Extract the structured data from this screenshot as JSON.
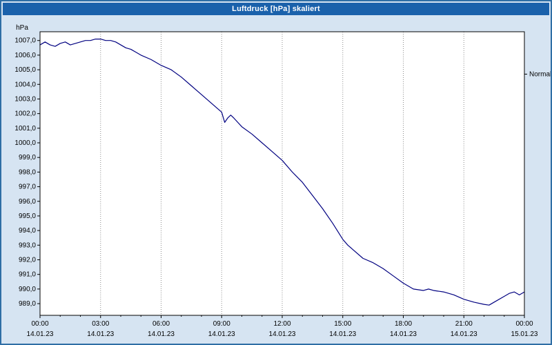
{
  "window": {
    "title": "Luftdruck [hPa] skaliert"
  },
  "chart_data": {
    "type": "line",
    "title": "Luftdruck [hPa] skaliert",
    "ylabel": "hPa",
    "ylim": [
      988.2,
      1007.6
    ],
    "xlim": [
      0,
      24
    ],
    "yticks": [
      1007,
      1006,
      1005,
      1004,
      1003,
      1002,
      1001,
      1000,
      999,
      998,
      997,
      996,
      995,
      994,
      993,
      992,
      991,
      990,
      989
    ],
    "ytick_labels": [
      "1007,0",
      "1006,0",
      "1005,0",
      "1004,0",
      "1003,0",
      "1002,0",
      "1001,0",
      "1000,0",
      "999,0",
      "998,0",
      "997,0",
      "996,0",
      "995,0",
      "994,0",
      "993,0",
      "992,0",
      "991,0",
      "990,0",
      "989,0"
    ],
    "xticks": [
      0,
      3,
      6,
      9,
      12,
      15,
      18,
      21,
      24
    ],
    "xtick_labels": [
      "00:00",
      "03:00",
      "06:00",
      "09:00",
      "12:00",
      "15:00",
      "18:00",
      "21:00",
      "00:00"
    ],
    "xtick_dates": [
      "14.01.23",
      "14.01.23",
      "14.01.23",
      "14.01.23",
      "14.01.23",
      "14.01.23",
      "14.01.23",
      "14.01.23",
      "15.01.23"
    ],
    "minor_xtick_step_hours": 1,
    "grid": {
      "vertical": true,
      "horizontal": false,
      "style": "dotted"
    },
    "annotation": {
      "label": "Normal",
      "value": 1004.7
    },
    "legend": "none",
    "series": [
      {
        "name": "Luftdruck [hPa] skaliert",
        "color": "#000080",
        "x": [
          0,
          0.25,
          0.5,
          0.75,
          1,
          1.25,
          1.5,
          1.75,
          2,
          2.25,
          2.5,
          2.75,
          3,
          3.25,
          3.5,
          3.75,
          4,
          4.25,
          4.5,
          4.75,
          5,
          5.5,
          6,
          6.5,
          7,
          7.5,
          8,
          8.25,
          8.5,
          8.75,
          9,
          9.15,
          9.3,
          9.45,
          9.6,
          9.8,
          10,
          10.5,
          11,
          11.5,
          12,
          12.5,
          13,
          13.5,
          14,
          14.5,
          15,
          15.25,
          15.5,
          16,
          16.5,
          17,
          17.5,
          18,
          18.5,
          19,
          19.25,
          19.5,
          20,
          20.5,
          21,
          21.5,
          22,
          22.25,
          22.5,
          23,
          23.25,
          23.5,
          23.75,
          24
        ],
        "y": [
          1006.7,
          1006.9,
          1006.7,
          1006.6,
          1006.8,
          1006.9,
          1006.7,
          1006.8,
          1006.9,
          1007.0,
          1007.0,
          1007.1,
          1007.1,
          1007.0,
          1007.0,
          1006.9,
          1006.7,
          1006.5,
          1006.4,
          1006.2,
          1006.0,
          1005.7,
          1005.3,
          1005.0,
          1004.5,
          1003.9,
          1003.3,
          1003.0,
          1002.7,
          1002.4,
          1002.1,
          1001.4,
          1001.7,
          1001.9,
          1001.7,
          1001.4,
          1001.1,
          1000.6,
          1000.0,
          999.4,
          998.8,
          998.0,
          997.3,
          996.4,
          995.5,
          994.5,
          993.4,
          993.0,
          992.7,
          992.1,
          991.8,
          991.4,
          990.9,
          990.4,
          990.0,
          989.9,
          990.0,
          989.9,
          989.8,
          989.6,
          989.3,
          989.1,
          988.95,
          988.9,
          989.1,
          989.5,
          989.7,
          989.8,
          989.6,
          989.8
        ]
      }
    ],
    "colors": {
      "background": "#d6e4f2",
      "titlebar": "#1a61ab",
      "title_text": "#ffffff",
      "plot_background": "#ffffff",
      "axis": "#000000",
      "grid": "#8c8c8c",
      "line": "#000080",
      "window_border": "#2f6ea5"
    }
  }
}
